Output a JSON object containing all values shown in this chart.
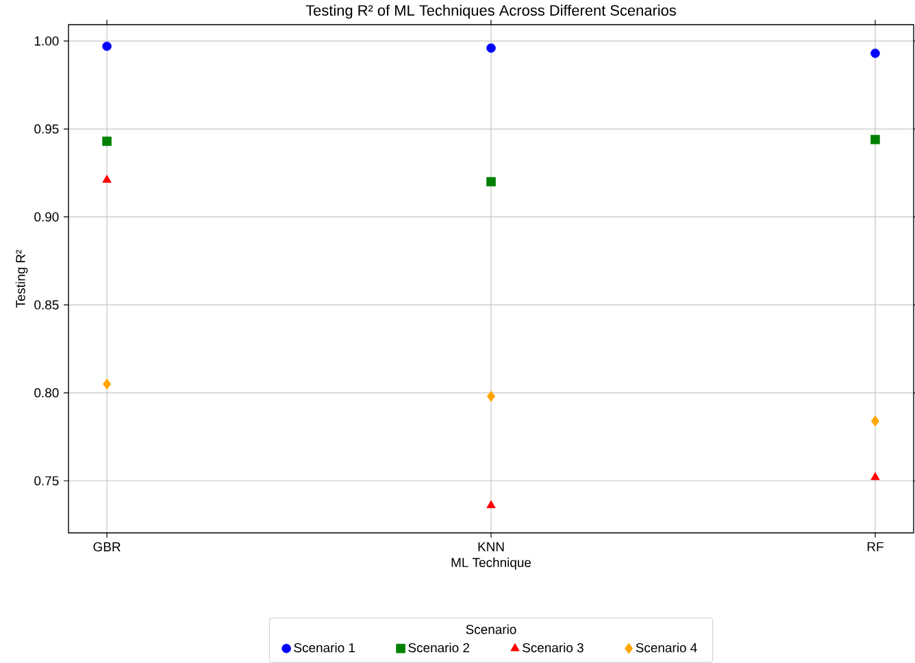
{
  "chart_data": {
    "type": "scatter",
    "title": "Testing R² of ML Techniques Across Different Scenarios",
    "xlabel": "ML Technique",
    "ylabel": "Testing R²",
    "legend_title": "Scenario",
    "categories": [
      "GBR",
      "KNN",
      "RF"
    ],
    "series": [
      {
        "name": "Scenario 1",
        "color": "#0000ff",
        "marker": "circle",
        "values": [
          0.997,
          0.996,
          0.993
        ]
      },
      {
        "name": "Scenario 2",
        "color": "#008000",
        "marker": "square",
        "values": [
          0.943,
          0.92,
          0.944
        ]
      },
      {
        "name": "Scenario 3",
        "color": "#ff0000",
        "marker": "triangle",
        "values": [
          0.921,
          0.736,
          0.752
        ]
      },
      {
        "name": "Scenario 4",
        "color": "#ffa500",
        "marker": "diamond",
        "values": [
          0.805,
          0.798,
          0.784
        ]
      }
    ],
    "ylim": [
      0.7204,
      1.0093
    ],
    "yticks": [
      {
        "value": 0.75,
        "label": "0.75"
      },
      {
        "value": 0.8,
        "label": "0.80"
      },
      {
        "value": 0.85,
        "label": "0.85"
      },
      {
        "value": 0.9,
        "label": "0.90"
      },
      {
        "value": 0.95,
        "label": "0.95"
      },
      {
        "value": 1.0,
        "label": "1.00"
      }
    ],
    "grid": true,
    "legend": "bottom"
  }
}
